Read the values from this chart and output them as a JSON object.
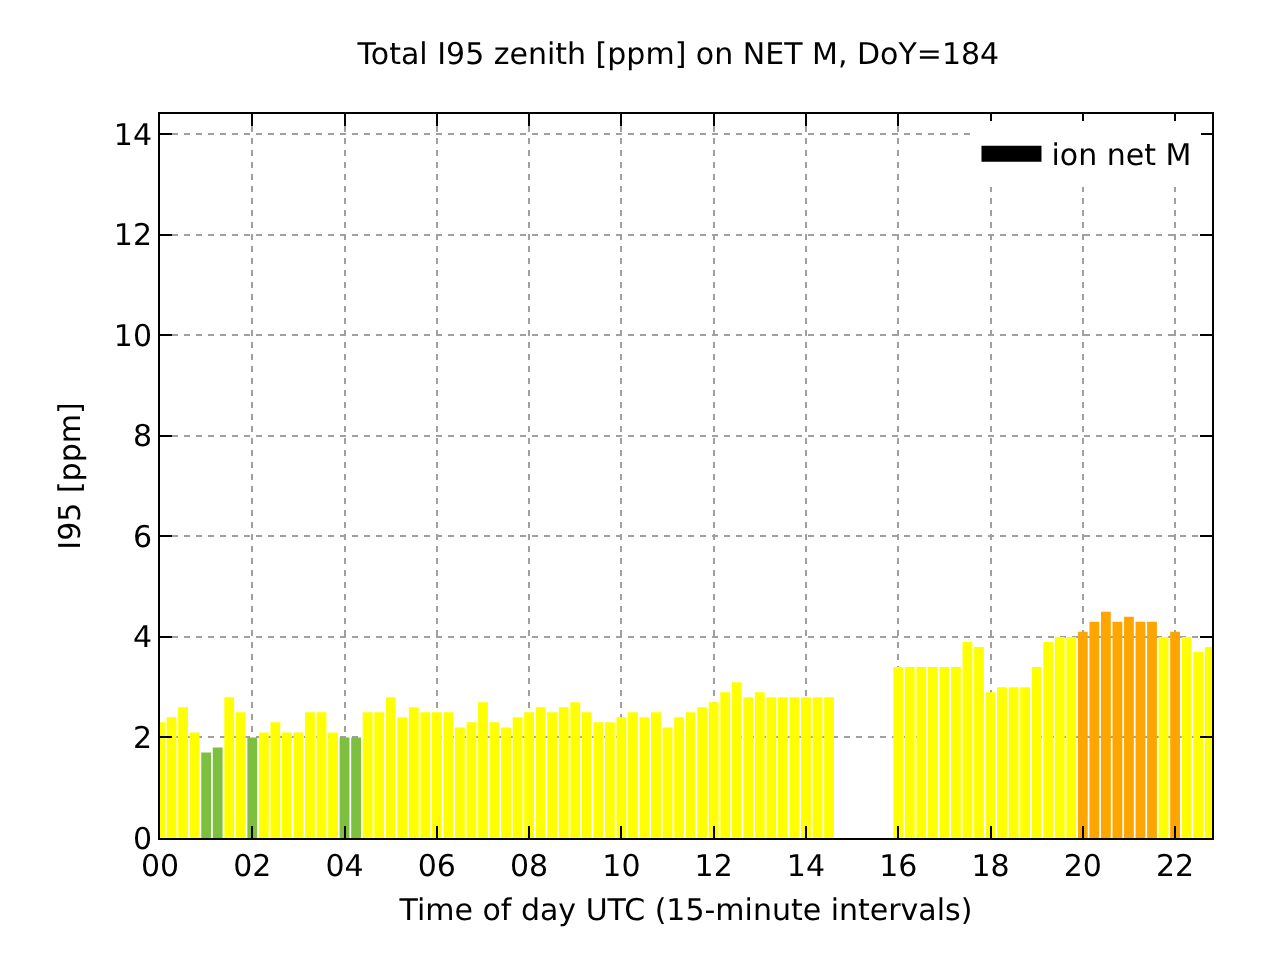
{
  "chart_data": {
    "type": "bar",
    "title": "Total I95 zenith [ppm] on NET M, DoY=184",
    "xlabel": "Time of day UTC (15-minute intervals)",
    "ylabel": "I95 [ppm]",
    "x": [
      0,
      0.25,
      0.5,
      0.75,
      1,
      1.25,
      1.5,
      1.75,
      2,
      2.25,
      2.5,
      2.75,
      3,
      3.25,
      3.5,
      3.75,
      4,
      4.25,
      4.5,
      4.75,
      5,
      5.25,
      5.5,
      5.75,
      6,
      6.25,
      6.5,
      6.75,
      7,
      7.25,
      7.5,
      7.75,
      8,
      8.25,
      8.5,
      8.75,
      9,
      9.25,
      9.5,
      9.75,
      10,
      10.25,
      10.5,
      10.75,
      11,
      11.25,
      11.5,
      11.75,
      12,
      12.25,
      12.5,
      12.75,
      13,
      13.25,
      13.5,
      13.75,
      14,
      14.25,
      14.5,
      16,
      16.25,
      16.5,
      16.75,
      17,
      17.25,
      17.5,
      17.75,
      18,
      18.25,
      18.5,
      18.75,
      19,
      19.25,
      19.5,
      19.75,
      20,
      20.25,
      20.5,
      20.75,
      21,
      21.25,
      21.5,
      21.75,
      22,
      22.25,
      22.5,
      22.75
    ],
    "series": [
      {
        "name": "ion net M",
        "color": "#000000",
        "colors": [
          "#ffff00",
          "#ffff00",
          "#ffff00",
          "#ffff00",
          "#7dbf3f",
          "#7dbf3f",
          "#ffff00",
          "#ffff00",
          "#7dbf3f",
          "#ffff00",
          "#ffff00",
          "#ffff00",
          "#ffff00",
          "#ffff00",
          "#ffff00",
          "#ffff00",
          "#7dbf3f",
          "#7dbf3f",
          "#ffff00",
          "#ffff00",
          "#ffff00",
          "#ffff00",
          "#ffff00",
          "#ffff00",
          "#ffff00",
          "#ffff00",
          "#ffff00",
          "#ffff00",
          "#ffff00",
          "#ffff00",
          "#ffff00",
          "#ffff00",
          "#ffff00",
          "#ffff00",
          "#ffff00",
          "#ffff00",
          "#ffff00",
          "#ffff00",
          "#ffff00",
          "#ffff00",
          "#ffff00",
          "#ffff00",
          "#ffff00",
          "#ffff00",
          "#ffff00",
          "#ffff00",
          "#ffff00",
          "#ffff00",
          "#ffff00",
          "#ffff00",
          "#ffff00",
          "#ffff00",
          "#ffff00",
          "#ffff00",
          "#ffff00",
          "#ffff00",
          "#ffff00",
          "#ffff00",
          "#ffff00",
          "#ffff00",
          "#ffff00",
          "#ffff00",
          "#ffff00",
          "#ffff00",
          "#ffff00",
          "#ffff00",
          "#ffff00",
          "#ffff00",
          "#ffff00",
          "#ffff00",
          "#ffff00",
          "#ffff00",
          "#ffff00",
          "#ffff00",
          "#ffff00",
          "#ffa500",
          "#ffa500",
          "#ffa500",
          "#ffa500",
          "#ffa500",
          "#ffa500",
          "#ffa500",
          "#ffff00",
          "#ffa500",
          "#ffff00",
          "#ffff00",
          "#ffff00"
        ],
        "values": [
          2.3,
          2.4,
          2.6,
          2.1,
          1.7,
          1.8,
          2.8,
          2.5,
          2.0,
          2.1,
          2.3,
          2.1,
          2.1,
          2.5,
          2.5,
          2.1,
          2.0,
          2.0,
          2.5,
          2.5,
          2.8,
          2.4,
          2.6,
          2.5,
          2.5,
          2.5,
          2.2,
          2.3,
          2.7,
          2.3,
          2.2,
          2.4,
          2.5,
          2.6,
          2.5,
          2.6,
          2.7,
          2.5,
          2.3,
          2.3,
          2.4,
          2.5,
          2.4,
          2.5,
          2.2,
          2.4,
          2.5,
          2.6,
          2.7,
          2.9,
          3.1,
          2.8,
          2.9,
          2.8,
          2.8,
          2.8,
          2.8,
          2.8,
          2.8,
          3.4,
          3.4,
          3.4,
          3.4,
          3.4,
          3.4,
          3.9,
          3.8,
          2.9,
          3.0,
          3.0,
          3.0,
          3.4,
          3.9,
          4.0,
          4.0,
          4.1,
          4.3,
          4.5,
          4.3,
          4.4,
          4.3,
          4.3,
          4.0,
          4.1,
          4.0,
          3.7,
          3.8
        ]
      }
    ],
    "xlim": [
      0,
      22.8
    ],
    "ylim": [
      0,
      14.4
    ],
    "xticks": [
      {
        "value": 0,
        "label": "00"
      },
      {
        "value": 2,
        "label": "02"
      },
      {
        "value": 4,
        "label": "04"
      },
      {
        "value": 6,
        "label": "06"
      },
      {
        "value": 8,
        "label": "08"
      },
      {
        "value": 10,
        "label": "10"
      },
      {
        "value": 12,
        "label": "12"
      },
      {
        "value": 14,
        "label": "14"
      },
      {
        "value": 16,
        "label": "16"
      },
      {
        "value": 18,
        "label": "18"
      },
      {
        "value": 20,
        "label": "20"
      },
      {
        "value": 22,
        "label": "22"
      }
    ],
    "yticks": [
      0,
      2,
      4,
      6,
      8,
      10,
      12,
      14
    ],
    "grid": true,
    "legend": "top right"
  }
}
